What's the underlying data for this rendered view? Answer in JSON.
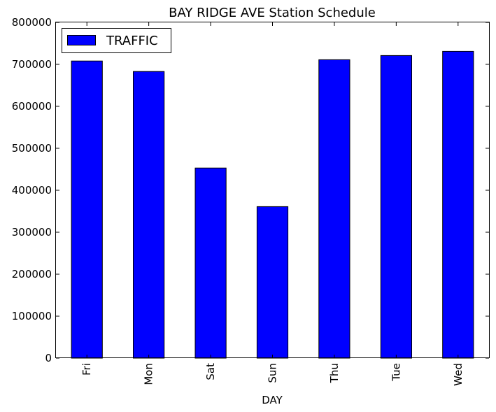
{
  "chart_data": {
    "type": "bar",
    "title": "BAY RIDGE AVE Station Schedule",
    "xlabel": "DAY",
    "ylabel": "",
    "categories": [
      "Fri",
      "Mon",
      "Sat",
      "Sun",
      "Thu",
      "Tue",
      "Wed"
    ],
    "series": [
      {
        "name": "TRAFFIC",
        "color": "#0000ff",
        "values": [
          708000,
          683000,
          453000,
          361000,
          711000,
          721000,
          731000
        ]
      }
    ],
    "ylim": [
      0,
      800000
    ],
    "yticks": [
      "0",
      "100000",
      "200000",
      "300000",
      "400000",
      "500000",
      "600000",
      "700000",
      "800000"
    ],
    "grid": false,
    "legend_position": "top-left"
  }
}
